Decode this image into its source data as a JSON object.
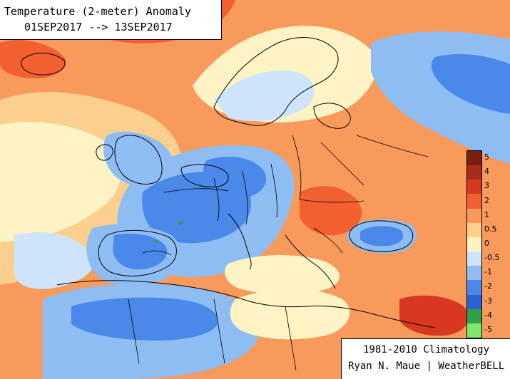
{
  "header": {
    "title": "Temperature (2-meter) Anomaly",
    "date_range": "01SEP2017 --> 13SEP2017"
  },
  "legend": {
    "entries": [
      {
        "label": "5",
        "color": "#7a1e12"
      },
      {
        "label": "4",
        "color": "#a92b1c"
      },
      {
        "label": "3",
        "color": "#d8381f"
      },
      {
        "label": "2",
        "color": "#f2602f"
      },
      {
        "label": "1",
        "color": "#f89a5c"
      },
      {
        "label": "0.5",
        "color": "#fbd08e"
      },
      {
        "label": "0",
        "color": "#fdf3c4"
      },
      {
        "label": "-0.5",
        "color": "#cde4fb"
      },
      {
        "label": "-1",
        "color": "#8ebdf3"
      },
      {
        "label": "-2",
        "color": "#4a88ea"
      },
      {
        "label": "-3",
        "color": "#2c60d8"
      },
      {
        "label": "-4",
        "color": "#2fa04a"
      },
      {
        "label": "-5",
        "color": "#7be86f"
      }
    ]
  },
  "footer": {
    "climatology": "1981-2010 Climatology",
    "credit": "Ryan N. Maue | WeatherBELL"
  }
}
